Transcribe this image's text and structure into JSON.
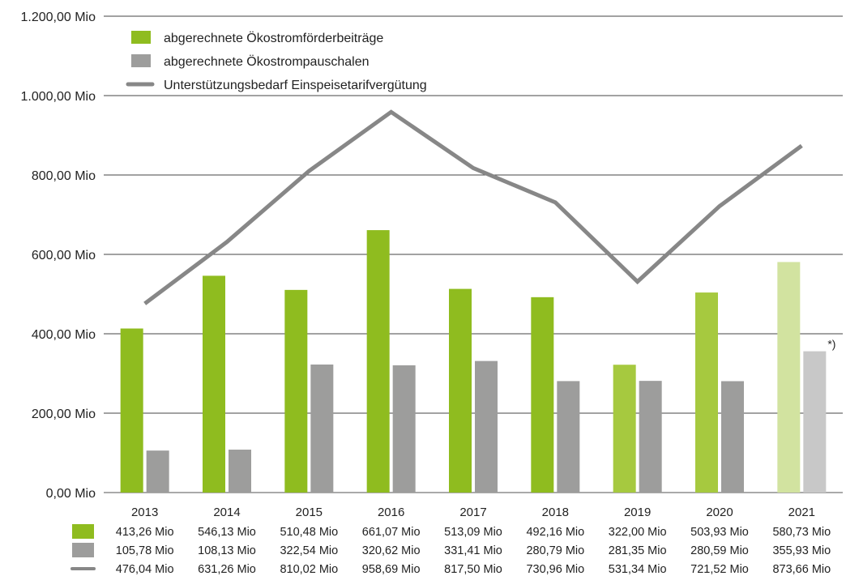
{
  "chart_data": {
    "type": "bar",
    "categories": [
      "2013",
      "2014",
      "2015",
      "2016",
      "2017",
      "2018",
      "2019",
      "2020",
      "2021"
    ],
    "series": [
      {
        "name": "abgerechnete Ökostromförderbeiträge",
        "kind": "bar",
        "color": "#8FBC1F",
        "values": [
          413.26,
          546.13,
          510.48,
          661.07,
          513.09,
          492.16,
          322.0,
          503.93,
          580.73
        ],
        "labels": [
          "413,26 Mio",
          "546,13 Mio",
          "510,48 Mio",
          "661,07 Mio",
          "513,09 Mio",
          "492,16 Mio",
          "322,00 Mio",
          "503,93 Mio",
          "580,73 Mio"
        ]
      },
      {
        "name": "abgerechnete Ökostrompauschalen",
        "kind": "bar",
        "color": "#9D9D9C",
        "values": [
          105.78,
          108.13,
          322.54,
          320.62,
          331.41,
          280.79,
          281.35,
          280.59,
          355.93
        ],
        "labels": [
          "105,78 Mio",
          "108,13 Mio",
          "322,54 Mio",
          "320,62 Mio",
          "331,41 Mio",
          "280,79 Mio",
          "281,35 Mio",
          "280,59 Mio",
          "355,93 Mio"
        ]
      },
      {
        "name": "Unterstützungsbedarf Einspeisetarifvergütung",
        "kind": "line",
        "color": "#878787",
        "values": [
          476.04,
          631.26,
          810.02,
          958.69,
          817.5,
          730.96,
          531.34,
          721.52,
          873.66
        ],
        "labels": [
          "476,04 Mio",
          "631,26 Mio",
          "810,02 Mio",
          "958,69 Mio",
          "817,50 Mio",
          "730,96 Mio",
          "531,34 Mio",
          "721,52 Mio",
          "873,66 Mio"
        ]
      }
    ],
    "bar_color_variants": {
      "green_by_year": [
        "#8FBC1F",
        "#8FBC1F",
        "#8FBC1F",
        "#8FBC1F",
        "#8FBC1F",
        "#8FBC1F",
        "#A6C93F",
        "#A6C93F",
        "#D2E3A0"
      ],
      "gray_by_year": [
        "#9D9D9C",
        "#9D9D9C",
        "#9D9D9C",
        "#9D9D9C",
        "#9D9D9C",
        "#9D9D9C",
        "#9D9D9C",
        "#9D9D9C",
        "#C8C8C8"
      ]
    },
    "ylim": [
      0,
      1200
    ],
    "yticks": [
      0,
      200,
      400,
      600,
      800,
      1000,
      1200
    ],
    "ytick_labels": [
      "0,00 Mio",
      "200,00 Mio",
      "400,00 Mio",
      "600,00 Mio",
      "800,00 Mio",
      "1.000,00 Mio",
      "1.200,00 Mio"
    ],
    "grid": true,
    "legend_position": "top-left",
    "annotation": "*)",
    "annotation_category": "2021",
    "data_table": true
  }
}
